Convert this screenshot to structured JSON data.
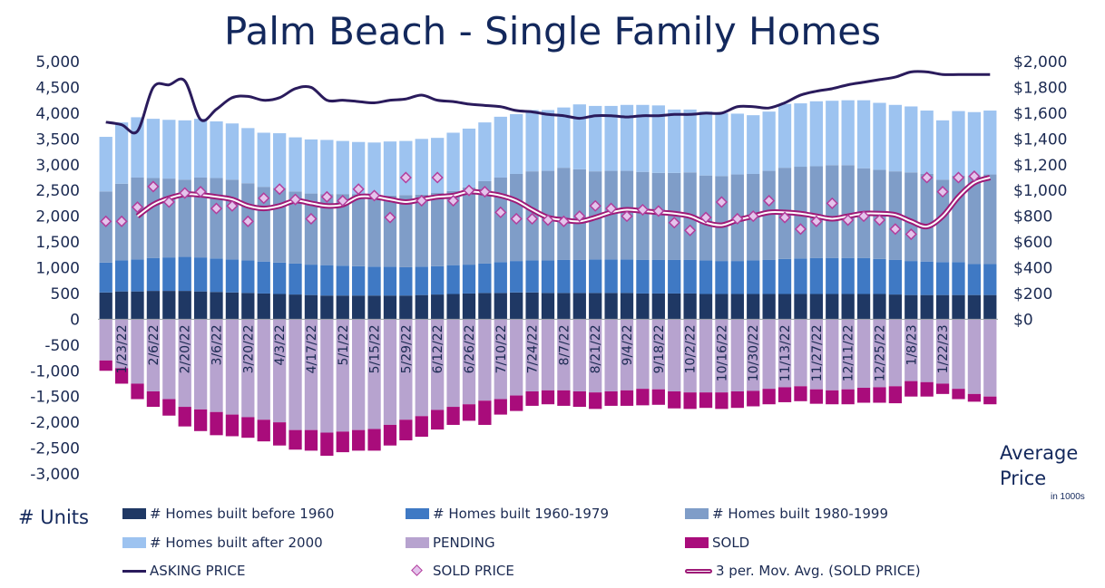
{
  "chart_data": {
    "type": "bar",
    "title": "Palm Beach - Single Family Homes",
    "ylabel": "# Units",
    "y2label": "Average Price",
    "y2label_note": "in 1000s",
    "ylim": [
      -3000,
      5000
    ],
    "y2lim": [
      0,
      2000
    ],
    "y_ticks": [
      "5,000",
      "4,500",
      "4,000",
      "3,500",
      "3,000",
      "2,500",
      "2,000",
      "1,500",
      "1,000",
      "500",
      "0",
      "-500",
      "-1,000",
      "-1,500",
      "-2,000",
      "-2,500",
      "-3,000"
    ],
    "y2_ticks": [
      "$2,000",
      "$1,800",
      "$1,600",
      "$1,400",
      "$1,200",
      "$1,000",
      "$800",
      "$600",
      "$400",
      "$200",
      "$0"
    ],
    "date_labels": [
      "1/23/22",
      "2/6/22",
      "2/20/22",
      "3/6/22",
      "3/20/22",
      "4/3/22",
      "4/17/22",
      "5/1/22",
      "5/15/22",
      "5/29/22",
      "6/12/22",
      "6/26/22",
      "7/10/22",
      "7/24/22",
      "8/7/22",
      "8/21/22",
      "9/4/22",
      "9/18/22",
      "10/2/22",
      "10/16/22",
      "10/30/22",
      "11/13/22",
      "11/27/22",
      "12/11/22",
      "12/25/22",
      "1/8/23",
      "1/22/23"
    ],
    "series": [
      {
        "name": "# Homes built before 1960",
        "color": "#1f3864",
        "values": [
          520,
          540,
          540,
          550,
          550,
          550,
          540,
          530,
          520,
          510,
          500,
          490,
          480,
          470,
          460,
          460,
          460,
          460,
          460,
          460,
          470,
          480,
          490,
          500,
          510,
          510,
          520,
          520,
          510,
          510,
          510,
          510,
          510,
          510,
          500,
          500,
          500,
          500,
          490,
          490,
          490,
          490,
          490,
          490,
          490,
          490,
          490,
          490,
          490,
          490,
          480,
          470,
          470,
          470,
          470,
          470,
          470
        ]
      },
      {
        "name": "# Homes built 1960-1979",
        "color": "#3f79c4",
        "values": [
          580,
          600,
          620,
          640,
          650,
          660,
          660,
          650,
          640,
          630,
          620,
          610,
          600,
          590,
          590,
          580,
          570,
          560,
          560,
          550,
          550,
          550,
          560,
          560,
          570,
          600,
          610,
          620,
          630,
          640,
          640,
          650,
          650,
          650,
          650,
          650,
          650,
          650,
          650,
          640,
          640,
          650,
          660,
          680,
          690,
          700,
          700,
          700,
          700,
          680,
          670,
          660,
          650,
          640,
          640,
          600,
          600
        ]
      },
      {
        "name": "# Homes built 1980-1999",
        "color": "#7f9dc8",
        "values": [
          1380,
          1490,
          1590,
          1550,
          1530,
          1500,
          1550,
          1560,
          1550,
          1500,
          1450,
          1450,
          1400,
          1380,
          1380,
          1390,
          1400,
          1400,
          1380,
          1400,
          1400,
          1420,
          1440,
          1500,
          1600,
          1640,
          1690,
          1730,
          1740,
          1790,
          1760,
          1710,
          1720,
          1720,
          1710,
          1690,
          1690,
          1700,
          1650,
          1650,
          1680,
          1680,
          1730,
          1770,
          1780,
          1780,
          1800,
          1800,
          1740,
          1730,
          1720,
          1720,
          1700,
          1600,
          1680,
          1710,
          1740
        ]
      },
      {
        "name": "# Homes built after 2000",
        "color": "#9dc3f0",
        "values": [
          1060,
          1190,
          1170,
          1150,
          1140,
          1150,
          1140,
          1100,
          1090,
          1070,
          1050,
          1060,
          1050,
          1050,
          1050,
          1030,
          1010,
          1010,
          1050,
          1050,
          1080,
          1070,
          1130,
          1140,
          1140,
          1180,
          1160,
          1190,
          1180,
          1170,
          1260,
          1270,
          1260,
          1280,
          1300,
          1310,
          1230,
          1220,
          1240,
          1220,
          1180,
          1140,
          1150,
          1240,
          1230,
          1260,
          1250,
          1260,
          1320,
          1300,
          1290,
          1280,
          1230,
          1150,
          1250,
          1240,
          1240
        ]
      },
      {
        "name": "PENDING",
        "color": "#b7a3cf",
        "values": [
          -800,
          -950,
          -1250,
          -1400,
          -1550,
          -1700,
          -1750,
          -1800,
          -1850,
          -1900,
          -1950,
          -2000,
          -2150,
          -2150,
          -2200,
          -2180,
          -2150,
          -2130,
          -2050,
          -1950,
          -1880,
          -1760,
          -1700,
          -1650,
          -1580,
          -1550,
          -1480,
          -1400,
          -1380,
          -1380,
          -1400,
          -1420,
          -1400,
          -1380,
          -1350,
          -1360,
          -1400,
          -1420,
          -1420,
          -1420,
          -1400,
          -1390,
          -1350,
          -1320,
          -1300,
          -1360,
          -1380,
          -1360,
          -1330,
          -1320,
          -1300,
          -1200,
          -1220,
          -1250,
          -1350,
          -1450,
          -1500
        ]
      },
      {
        "name": "SOLD",
        "color": "#a90c7b",
        "values": [
          -200,
          -300,
          -300,
          -300,
          -320,
          -380,
          -420,
          -450,
          -420,
          -400,
          -420,
          -450,
          -380,
          -400,
          -450,
          -400,
          -400,
          -420,
          -400,
          -400,
          -400,
          -380,
          -350,
          -320,
          -470,
          -300,
          -300,
          -280,
          -270,
          -300,
          -300,
          -320,
          -280,
          -300,
          -320,
          -300,
          -330,
          -320,
          -300,
          -320,
          -320,
          -300,
          -300,
          -290,
          -290,
          -280,
          -270,
          -290,
          -290,
          -300,
          -330,
          -300,
          -280,
          -200,
          -200,
          -150,
          -150
        ]
      },
      {
        "name": "ASKING PRICE",
        "color": "#2a1b5c",
        "values": [
          1530,
          1510,
          1460,
          1800,
          1820,
          1850,
          1550,
          1630,
          1720,
          1730,
          1700,
          1720,
          1790,
          1800,
          1700,
          1700,
          1690,
          1680,
          1700,
          1710,
          1740,
          1700,
          1690,
          1670,
          1660,
          1650,
          1620,
          1610,
          1590,
          1580,
          1560,
          1580,
          1580,
          1570,
          1580,
          1580,
          1590,
          1590,
          1600,
          1600,
          1650,
          1650,
          1640,
          1680,
          1740,
          1770,
          1790,
          1820,
          1840,
          1860,
          1880,
          1920,
          1920,
          1900,
          1900,
          1900,
          1900
        ]
      },
      {
        "name": "SOLD PRICE",
        "color": "#b23d9c",
        "values": [
          760,
          760,
          870,
          1030,
          910,
          980,
          990,
          860,
          880,
          760,
          940,
          1010,
          930,
          780,
          950,
          920,
          1010,
          960,
          790,
          1100,
          920,
          1100,
          920,
          1000,
          990,
          830,
          780,
          780,
          770,
          760,
          800,
          880,
          860,
          800,
          850,
          840,
          750,
          690,
          790,
          910,
          780,
          800,
          920,
          790,
          700,
          760,
          900,
          770,
          800,
          770,
          700,
          660,
          1100,
          990,
          1100,
          1110
        ]
      },
      {
        "name": "3 per. Mov. Avg. (SOLD PRICE)",
        "color": "#9e1a77",
        "values": [
          null,
          null,
          800,
          890,
          940,
          970,
          965,
          950,
          930,
          880,
          860,
          880,
          920,
          900,
          880,
          890,
          950,
          950,
          930,
          910,
          930,
          950,
          960,
          990,
          980,
          960,
          920,
          850,
          790,
          770,
          760,
          790,
          830,
          850,
          840,
          830,
          820,
          800,
          750,
          730,
          770,
          800,
          830,
          830,
          820,
          800,
          780,
          800,
          820,
          820,
          810,
          760,
          720,
          800,
          950,
          1060,
          1100
        ]
      }
    ]
  },
  "legend": {
    "units": "# Units",
    "before_1960": "# Homes built before 1960",
    "b1960_1979": "# Homes built 1960-1979",
    "b1980_1999": "# Homes built 1980-1999",
    "after_2000": "# Homes built after 2000",
    "pending": "PENDING",
    "sold": "SOLD",
    "asking": "ASKING PRICE",
    "sold_price": "SOLD PRICE",
    "mov_avg": "3 per. Mov. Avg. (SOLD PRICE)"
  }
}
